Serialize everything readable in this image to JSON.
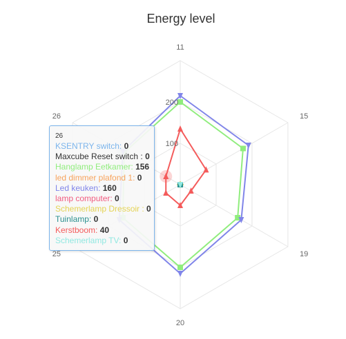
{
  "chart_data": {
    "type": "radar",
    "title": "Energy level",
    "categories": [
      "11",
      "15",
      "19",
      "20",
      "25",
      "26"
    ],
    "yticks": [
      100,
      200
    ],
    "ylim": [
      0,
      300
    ],
    "grid": true,
    "series": [
      {
        "name": "KSENTRY switch",
        "color": "#7cb5ec",
        "values": [
          0,
          0,
          0,
          0,
          0,
          0
        ]
      },
      {
        "name": "Maxcube Reset switch :",
        "color": "#434348",
        "values": [
          0,
          0,
          0,
          0,
          0,
          0
        ]
      },
      {
        "name": "Hanglamp Eetkamer",
        "color": "#90ed7d",
        "values": [
          200,
          175,
          160,
          200,
          160,
          156
        ]
      },
      {
        "name": " led dimmer plafond 1",
        "color": "#f7a35c",
        "values": [
          0,
          0,
          0,
          0,
          0,
          0
        ]
      },
      {
        "name": "Led keuken",
        "color": "#8085e9",
        "values": [
          215,
          190,
          170,
          215,
          170,
          160
        ]
      },
      {
        "name": "lamp computer",
        "color": "#f15c80",
        "values": [
          0,
          0,
          0,
          0,
          0,
          0
        ]
      },
      {
        "name": "Schemerlamp Dressoir :",
        "color": "#e4d354",
        "values": [
          0,
          0,
          0,
          0,
          0,
          0
        ]
      },
      {
        "name": "Tuinlamp",
        "color": "#2b908f",
        "values": [
          0,
          0,
          0,
          0,
          0,
          0
        ]
      },
      {
        "name": "Kerstboom",
        "color": "#f45b5b",
        "values": [
          135,
          72,
          30,
          50,
          40,
          40
        ]
      },
      {
        "name": "Schemerlamp TV",
        "color": "#91e8e1",
        "values": [
          0,
          0,
          0,
          0,
          0,
          0
        ]
      }
    ],
    "highlight_category_index": 5
  },
  "tooltip": {
    "header": "26",
    "rows": [
      {
        "label": "KSENTRY switch",
        "sep": ": ",
        "value": "0",
        "color": "#7cb5ec"
      },
      {
        "label": "Maxcube Reset switch ",
        "sep": ": ",
        "value": "0",
        "color": "#333333"
      },
      {
        "label": "Hanglamp Eetkamer",
        "sep": ": ",
        "value": "156",
        "color": "#90ed7d"
      },
      {
        "label": " led dimmer plafond 1",
        "sep": ": ",
        "value": "0",
        "color": "#f7a35c"
      },
      {
        "label": "Led keuken",
        "sep": ": ",
        "value": "160",
        "color": "#8085e9"
      },
      {
        "label": "lamp computer",
        "sep": ": ",
        "value": "0",
        "color": "#f15c80"
      },
      {
        "label": "Schemerlamp Dressoir ",
        "sep": ": ",
        "value": "0",
        "color": "#e4d354"
      },
      {
        "label": "Tuinlamp",
        "sep": ": ",
        "value": "0",
        "color": "#2b908f"
      },
      {
        "label": "Kerstboom",
        "sep": ": ",
        "value": "40",
        "color": "#f45b5b"
      },
      {
        "label": "Schemerlamp TV",
        "sep": ": ",
        "value": "0",
        "color": "#91e8e1"
      }
    ]
  }
}
